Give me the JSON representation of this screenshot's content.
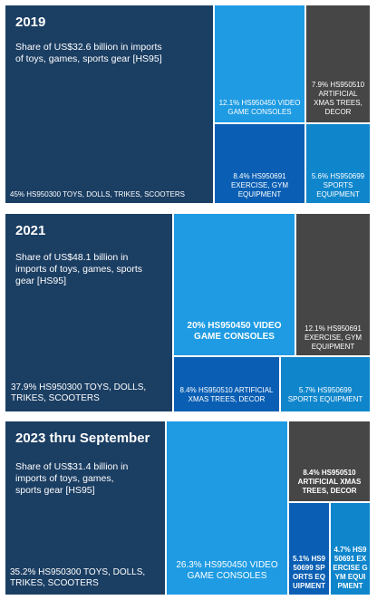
{
  "colors": {
    "dark_navy": "#1b3e63",
    "bright_blue": "#1e9be3",
    "royal_blue": "#0a5fb4",
    "dark_gray": "#464646",
    "mid_blue": "#0f86cc"
  },
  "chart_data": [
    {
      "type": "treemap",
      "title": "2019",
      "subtitle": "Share of US$32.6 billion in imports of toys, games, sports gear [HS95]",
      "tiles": [
        {
          "code": "HS950300",
          "label": "45% HS950300 TOYS, DOLLS, TRIKES, SCOOTERS",
          "share": 45.0
        },
        {
          "code": "HS950450",
          "label": "12.1% HS950450 VIDEO GAME CONSOLES",
          "share": 12.1
        },
        {
          "code": "HS950510",
          "label": "7.9% HS950510 ARTIFICIAL XMAS TREES, DECOR",
          "share": 7.9
        },
        {
          "code": "HS950691",
          "label": "8.4% HS950691 EXERCISE, GYM EQUIPMENT",
          "share": 8.4
        },
        {
          "code": "HS950699",
          "label": "5.6% HS950699 SPORTS EQUIPMENT",
          "share": 5.6
        }
      ]
    },
    {
      "type": "treemap",
      "title": "2021",
      "subtitle": "Share of US$48.1 billion in imports of toys, games, sports gear [HS95]",
      "tiles": [
        {
          "code": "HS950300",
          "label": "37.9% HS950300 TOYS, DOLLS, TRIKES, SCOOTERS",
          "share": 37.9
        },
        {
          "code": "HS950450",
          "label": "20% HS950450 VIDEO GAME CONSOLES",
          "share": 20.0
        },
        {
          "code": "HS950691",
          "label": "12.1% HS950691 EXERCISE, GYM EQUIPMENT",
          "share": 12.1
        },
        {
          "code": "HS950510",
          "label": "8.4% HS950510 ARTIFICIAL XMAS TREES, DECOR",
          "share": 8.4
        },
        {
          "code": "HS950699",
          "label": "5.7% HS950699 SPORTS EQUIPMENT",
          "share": 5.7
        }
      ]
    },
    {
      "type": "treemap",
      "title": "2023 thru September",
      "subtitle": "Share of US$31.4 billion in imports of toys, games, sports gear [HS95]",
      "tiles": [
        {
          "code": "HS950300",
          "label": "35.2% HS950300 TOYS, DOLLS, TRIKES, SCOOTERS",
          "share": 35.2
        },
        {
          "code": "HS950450",
          "label": "26.3% HS950450 VIDEO GAME CONSOLES",
          "share": 26.3
        },
        {
          "code": "HS950510",
          "label": "8.4% HS950510 ARTIFICIAL XMAS TREES, DECOR",
          "share": 8.4
        },
        {
          "code": "HS950699",
          "label": "5.1% HS950699 SPORTS EQUIPMENT",
          "share": 5.1
        },
        {
          "code": "HS950691",
          "label": "4.7% HS950691 EXERCISE GYM EQUIPMENT",
          "share": 4.7
        }
      ]
    }
  ]
}
